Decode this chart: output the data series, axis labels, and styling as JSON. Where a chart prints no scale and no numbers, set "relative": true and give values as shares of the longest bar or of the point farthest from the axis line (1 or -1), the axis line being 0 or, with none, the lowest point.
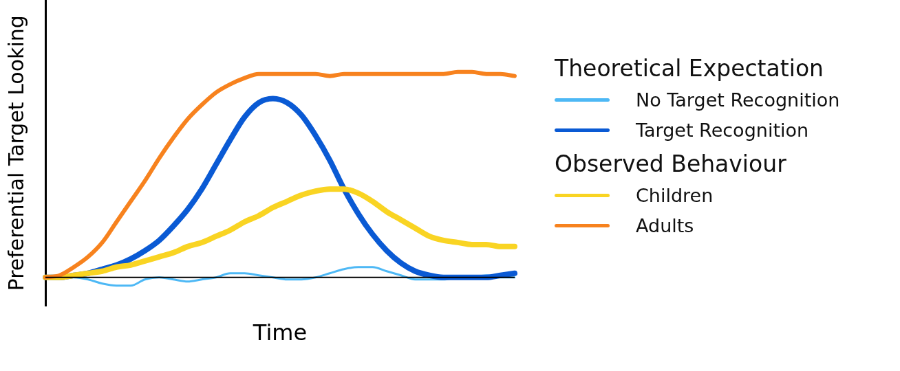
{
  "chart_data": {
    "type": "line",
    "relative": true,
    "xlabel": "Time",
    "ylabel": "Preferential Target Looking",
    "legend": "right",
    "annotations": [
      "Theoretical Expectation",
      "Observed Behaviour"
    ],
    "categories": [
      null,
      null,
      null,
      null,
      null,
      null,
      null,
      null,
      null,
      null,
      null,
      null,
      null,
      null,
      null,
      null,
      null,
      null,
      null,
      null,
      null,
      null,
      null,
      null,
      null,
      null,
      null,
      null,
      null,
      null,
      null,
      null,
      null,
      null
    ],
    "series": [
      {
        "name": "No Target Recognition",
        "color": "#4db8f5",
        "values": [
          0,
          0,
          0,
          -0.01,
          -0.03,
          -0.04,
          -0.04,
          -0.01,
          0,
          -0.01,
          -0.02,
          -0.01,
          0,
          0.02,
          0.02,
          0.01,
          0,
          -0.01,
          -0.01,
          0,
          0.02,
          0.04,
          0.05,
          0.05,
          0.03,
          0.01,
          -0.01,
          -0.01,
          -0.01,
          0,
          0,
          0.01,
          0,
          0
        ]
      },
      {
        "name": "Target Recognition",
        "color": "#0a5ad4",
        "values": [
          0,
          0,
          0.01,
          0.02,
          0.04,
          0.06,
          0.09,
          0.13,
          0.18,
          0.25,
          0.33,
          0.43,
          0.55,
          0.67,
          0.78,
          0.85,
          0.87,
          0.85,
          0.79,
          0.69,
          0.57,
          0.43,
          0.31,
          0.21,
          0.13,
          0.07,
          0.03,
          0.01,
          0,
          0,
          0,
          0,
          0.01,
          0.02
        ]
      },
      {
        "name": "Children",
        "color": "#f9d423",
        "values": [
          0,
          0,
          0.01,
          0.02,
          0.03,
          0.05,
          0.06,
          0.08,
          0.1,
          0.12,
          0.15,
          0.17,
          0.2,
          0.23,
          0.27,
          0.3,
          0.34,
          0.37,
          0.4,
          0.42,
          0.43,
          0.43,
          0.41,
          0.37,
          0.32,
          0.28,
          0.24,
          0.2,
          0.18,
          0.17,
          0.16,
          0.16,
          0.15,
          0.15
        ]
      },
      {
        "name": "Adults",
        "color": "#f7821e",
        "values": [
          0,
          0.01,
          0.05,
          0.1,
          0.17,
          0.27,
          0.37,
          0.47,
          0.58,
          0.68,
          0.77,
          0.84,
          0.9,
          0.94,
          0.97,
          0.99,
          0.99,
          0.99,
          0.99,
          0.99,
          0.98,
          0.99,
          0.99,
          0.99,
          0.99,
          0.99,
          0.99,
          0.99,
          0.99,
          1,
          1,
          0.99,
          0.99,
          0.98
        ]
      }
    ]
  }
}
